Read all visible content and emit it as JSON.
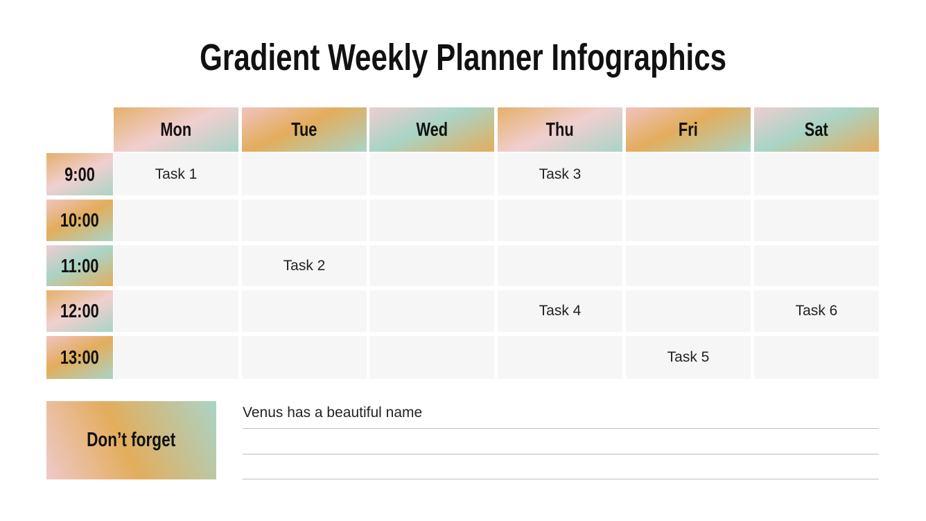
{
  "title": "Gradient Weekly Planner Infographics",
  "days": [
    "Mon",
    "Tue",
    "Wed",
    "Thu",
    "Fri",
    "Sat"
  ],
  "times": [
    "9:00",
    "10:00",
    "11:00",
    "12:00",
    "13:00"
  ],
  "grid": [
    [
      "Task 1",
      "",
      "",
      "Task 3",
      "",
      ""
    ],
    [
      "",
      "",
      "",
      "",
      "",
      ""
    ],
    [
      "",
      "Task 2",
      "",
      "",
      "",
      ""
    ],
    [
      "",
      "",
      "",
      "Task 4",
      "",
      "Task 6"
    ],
    [
      "",
      "",
      "",
      "",
      "Task 5",
      ""
    ]
  ],
  "reminder": {
    "label": "Don’t forget",
    "notes": [
      "Venus has a beautiful name",
      "",
      ""
    ]
  },
  "colors": {
    "orange": "#e3ad5c",
    "pink": "#f0cfd0",
    "teal": "#a9d4c6",
    "cell": "#f6f6f6"
  }
}
